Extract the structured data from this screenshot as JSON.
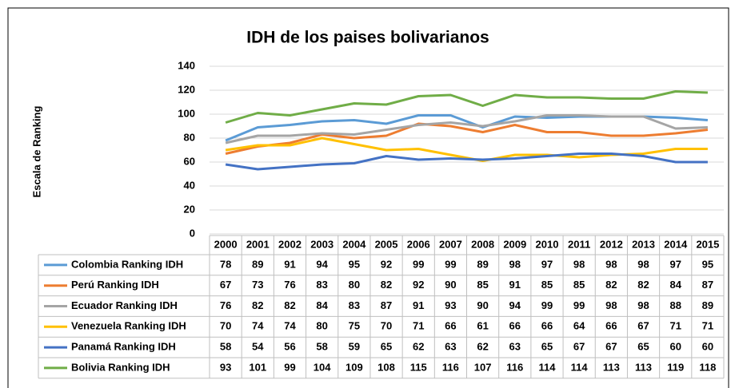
{
  "chart_data": {
    "type": "line",
    "title": "IDH de los paises bolivarianos",
    "y_label": "Escala de Ranking",
    "categories": [
      "2000",
      "2001",
      "2002",
      "2003",
      "2004",
      "2005",
      "2006",
      "2007",
      "2008",
      "2009",
      "2010",
      "2011",
      "2012",
      "2013",
      "2014",
      "2015"
    ],
    "series": [
      {
        "name": "Colombia Ranking IDH",
        "color": "#5b9bd5",
        "values": [
          78,
          89,
          91,
          94,
          95,
          92,
          99,
          99,
          89,
          98,
          97,
          98,
          98,
          98,
          97,
          95
        ]
      },
      {
        "name": "Perú Ranking IDH",
        "color": "#ed7d31",
        "values": [
          67,
          73,
          76,
          83,
          80,
          82,
          92,
          90,
          85,
          91,
          85,
          85,
          82,
          82,
          84,
          87
        ]
      },
      {
        "name": "Ecuador Ranking IDH",
        "color": "#a5a5a5",
        "values": [
          76,
          82,
          82,
          84,
          83,
          87,
          91,
          93,
          90,
          94,
          99,
          99,
          98,
          98,
          88,
          89
        ]
      },
      {
        "name": "Venezuela Ranking IDH",
        "color": "#ffc000",
        "values": [
          70,
          74,
          74,
          80,
          75,
          70,
          71,
          66,
          61,
          66,
          66,
          64,
          66,
          67,
          71,
          71
        ]
      },
      {
        "name": "Panamá Ranking IDH",
        "color": "#4472c4",
        "values": [
          58,
          54,
          56,
          58,
          59,
          65,
          62,
          63,
          62,
          63,
          65,
          67,
          67,
          65,
          60,
          60
        ]
      },
      {
        "name": "Bolivia Ranking IDH",
        "color": "#70ad47",
        "values": [
          93,
          101,
          99,
          104,
          109,
          108,
          115,
          116,
          107,
          116,
          114,
          114,
          113,
          113,
          119,
          118
        ]
      }
    ],
    "ylim": [
      0,
      140
    ],
    "yticks": [
      0,
      20,
      40,
      60,
      80,
      100,
      120,
      140
    ],
    "grid": true
  }
}
